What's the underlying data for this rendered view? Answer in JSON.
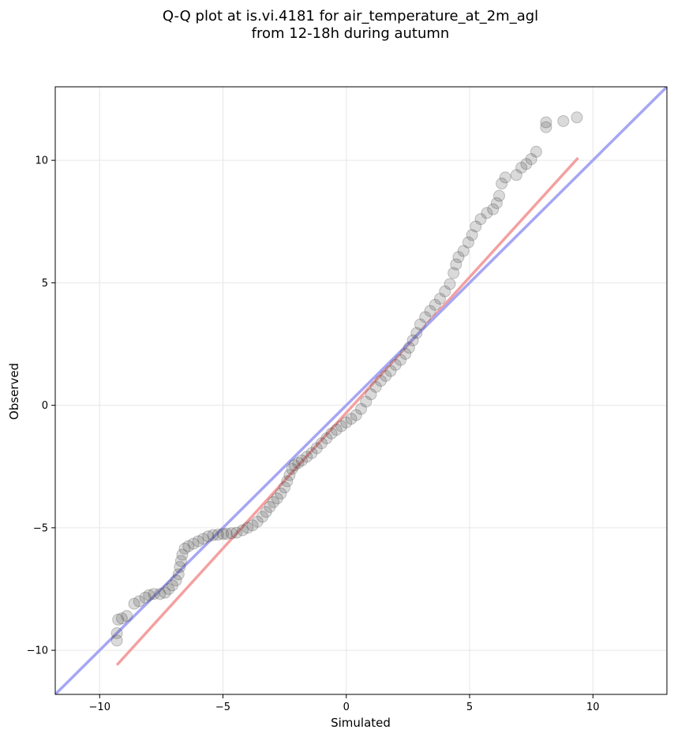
{
  "chart_data": {
    "type": "scatter",
    "title_line1": "Q-Q plot at is.vi.4181 for air_temperature_at_2m_agl",
    "title_line2": "from 12-18h during autumn",
    "xlabel": "Simulated",
    "ylabel": "Observed",
    "xlim": [
      -11.8,
      13.0
    ],
    "ylim": [
      -11.8,
      13.0
    ],
    "xticks": [
      -10,
      -5,
      0,
      5,
      10
    ],
    "yticks": [
      -10,
      -5,
      0,
      5,
      10
    ],
    "xtick_labels": [
      "−10",
      "−5",
      "0",
      "5",
      "10"
    ],
    "ytick_labels": [
      "−10",
      "−5",
      "0",
      "5",
      "10"
    ],
    "grid": true,
    "point_color": "#444444",
    "series": [
      {
        "values": [
          [
            -9.3,
            -9.6
          ],
          [
            -9.3,
            -9.3
          ],
          [
            -9.25,
            -8.75
          ],
          [
            -9.1,
            -8.7
          ],
          [
            -8.9,
            -8.6
          ],
          [
            -8.6,
            -8.1
          ],
          [
            -8.4,
            -8.0
          ],
          [
            -8.15,
            -7.85
          ],
          [
            -8.0,
            -7.75
          ],
          [
            -7.8,
            -7.7
          ],
          [
            -7.55,
            -7.7
          ],
          [
            -7.35,
            -7.65
          ],
          [
            -7.2,
            -7.5
          ],
          [
            -7.05,
            -7.35
          ],
          [
            -6.9,
            -7.15
          ],
          [
            -6.8,
            -6.9
          ],
          [
            -6.75,
            -6.6
          ],
          [
            -6.7,
            -6.35
          ],
          [
            -6.65,
            -6.1
          ],
          [
            -6.55,
            -5.85
          ],
          [
            -6.4,
            -5.75
          ],
          [
            -6.2,
            -5.65
          ],
          [
            -6.0,
            -5.55
          ],
          [
            -5.8,
            -5.45
          ],
          [
            -5.6,
            -5.35
          ],
          [
            -5.4,
            -5.3
          ],
          [
            -5.2,
            -5.28
          ],
          [
            -5.0,
            -5.25
          ],
          [
            -4.85,
            -5.25
          ],
          [
            -4.65,
            -5.22
          ],
          [
            -4.45,
            -5.2
          ],
          [
            -4.2,
            -5.1
          ],
          [
            -4.0,
            -5.0
          ],
          [
            -3.8,
            -4.9
          ],
          [
            -3.6,
            -4.75
          ],
          [
            -3.4,
            -4.55
          ],
          [
            -3.25,
            -4.35
          ],
          [
            -3.1,
            -4.15
          ],
          [
            -2.95,
            -3.95
          ],
          [
            -2.8,
            -3.8
          ],
          [
            -2.65,
            -3.6
          ],
          [
            -2.5,
            -3.35
          ],
          [
            -2.4,
            -3.1
          ],
          [
            -2.3,
            -2.85
          ],
          [
            -2.2,
            -2.6
          ],
          [
            -2.1,
            -2.45
          ],
          [
            -1.95,
            -2.35
          ],
          [
            -1.8,
            -2.25
          ],
          [
            -1.6,
            -2.1
          ],
          [
            -1.4,
            -1.95
          ],
          [
            -1.2,
            -1.75
          ],
          [
            -1.0,
            -1.55
          ],
          [
            -0.8,
            -1.35
          ],
          [
            -0.6,
            -1.15
          ],
          [
            -0.4,
            -1.0
          ],
          [
            -0.2,
            -0.85
          ],
          [
            0.0,
            -0.7
          ],
          [
            0.2,
            -0.55
          ],
          [
            0.4,
            -0.4
          ],
          [
            0.6,
            -0.15
          ],
          [
            0.8,
            0.15
          ],
          [
            1.0,
            0.45
          ],
          [
            1.2,
            0.75
          ],
          [
            1.4,
            1.0
          ],
          [
            1.6,
            1.2
          ],
          [
            1.8,
            1.4
          ],
          [
            2.0,
            1.65
          ],
          [
            2.2,
            1.85
          ],
          [
            2.4,
            2.1
          ],
          [
            2.55,
            2.35
          ],
          [
            2.7,
            2.65
          ],
          [
            2.85,
            2.95
          ],
          [
            3.0,
            3.3
          ],
          [
            3.2,
            3.6
          ],
          [
            3.4,
            3.85
          ],
          [
            3.6,
            4.1
          ],
          [
            3.8,
            4.35
          ],
          [
            4.0,
            4.65
          ],
          [
            4.2,
            4.95
          ],
          [
            4.35,
            5.4
          ],
          [
            4.45,
            5.75
          ],
          [
            4.55,
            6.05
          ],
          [
            4.75,
            6.3
          ],
          [
            4.95,
            6.65
          ],
          [
            5.1,
            6.95
          ],
          [
            5.25,
            7.3
          ],
          [
            5.45,
            7.6
          ],
          [
            5.7,
            7.85
          ],
          [
            5.95,
            8.0
          ],
          [
            6.1,
            8.25
          ],
          [
            6.2,
            8.55
          ],
          [
            6.3,
            9.05
          ],
          [
            6.45,
            9.3
          ],
          [
            6.9,
            9.4
          ],
          [
            7.1,
            9.7
          ],
          [
            7.3,
            9.85
          ],
          [
            7.5,
            10.05
          ],
          [
            7.7,
            10.35
          ],
          [
            8.1,
            11.35
          ],
          [
            8.1,
            11.55
          ],
          [
            8.8,
            11.6
          ],
          [
            9.35,
            11.75
          ]
        ]
      }
    ],
    "lines": [
      {
        "name": "",
        "color": "#f4a0a0",
        "x": [
          -9.3,
          9.4
        ],
        "y": [
          -10.6,
          10.1
        ]
      },
      {
        "name": "",
        "color": "#a6a6f4",
        "x": [
          -11.8,
          13.0
        ],
        "y": [
          -11.8,
          13.0
        ]
      }
    ]
  }
}
